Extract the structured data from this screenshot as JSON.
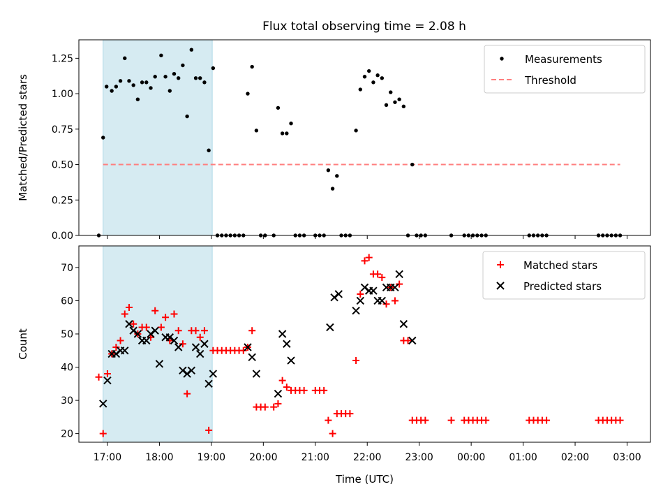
{
  "figure_title": "Flux total observing time = 2.08 h",
  "colors": {
    "measurement": "#000000",
    "threshold": "#ff7f7f",
    "matched": "#ff0000",
    "predicted": "#000000",
    "highlight": "#add8e6"
  },
  "chart_data": [
    {
      "type": "scatter",
      "title": "Flux total observing time = 2.08 h",
      "xlabel": "",
      "ylabel": "Matched/Predicted stars",
      "xlim": [
        "16:27",
        "03:27"
      ],
      "ylim": [
        0,
        1.38
      ],
      "yticks": [
        "0.00",
        "0.25",
        "0.50",
        "0.75",
        "1.00",
        "1.25"
      ],
      "xtick_labels": [
        "17:00",
        "18:00",
        "19:00",
        "20:00",
        "21:00",
        "22:00",
        "23:00",
        "00:00",
        "01:00",
        "02:00",
        "03:00"
      ],
      "highlight_span": [
        "16:55",
        "19:01"
      ],
      "legend": [
        "Measurements",
        "Threshold"
      ],
      "legend_position": "upper right",
      "threshold": {
        "name": "Threshold",
        "y": 0.5,
        "x": [
          "16:55",
          "02:52"
        ]
      },
      "series": [
        {
          "name": "Measurements",
          "marker": "dot",
          "points": [
            [
              "16:50",
              0.0
            ],
            [
              "16:55",
              0.69
            ],
            [
              "16:59",
              1.05
            ],
            [
              "17:05",
              1.02
            ],
            [
              "17:10",
              1.05
            ],
            [
              "17:15",
              1.09
            ],
            [
              "17:20",
              1.25
            ],
            [
              "17:25",
              1.09
            ],
            [
              "17:30",
              1.06
            ],
            [
              "17:35",
              0.96
            ],
            [
              "17:40",
              1.08
            ],
            [
              "17:45",
              1.08
            ],
            [
              "17:50",
              1.04
            ],
            [
              "17:55",
              1.12
            ],
            [
              "18:02",
              1.27
            ],
            [
              "18:07",
              1.12
            ],
            [
              "18:12",
              1.02
            ],
            [
              "18:17",
              1.14
            ],
            [
              "18:22",
              1.11
            ],
            [
              "18:27",
              1.2
            ],
            [
              "18:32",
              0.84
            ],
            [
              "18:37",
              1.31
            ],
            [
              "18:42",
              1.11
            ],
            [
              "18:47",
              1.11
            ],
            [
              "18:52",
              1.08
            ],
            [
              "18:57",
              0.6
            ],
            [
              "19:02",
              1.18
            ],
            [
              "19:07",
              0.0
            ],
            [
              "19:12",
              0.0
            ],
            [
              "19:17",
              0.0
            ],
            [
              "19:22",
              0.0
            ],
            [
              "19:27",
              0.0
            ],
            [
              "19:32",
              0.0
            ],
            [
              "19:37",
              0.0
            ],
            [
              "19:42",
              1.0
            ],
            [
              "19:47",
              1.19
            ],
            [
              "19:52",
              0.74
            ],
            [
              "19:57",
              0.0
            ],
            [
              "20:02",
              0.0
            ],
            [
              "20:12",
              0.0
            ],
            [
              "20:17",
              0.9
            ],
            [
              "20:22",
              0.72
            ],
            [
              "20:27",
              0.72
            ],
            [
              "20:32",
              0.79
            ],
            [
              "20:37",
              0.0
            ],
            [
              "20:42",
              0.0
            ],
            [
              "20:47",
              0.0
            ],
            [
              "21:00",
              0.0
            ],
            [
              "21:05",
              0.0
            ],
            [
              "21:10",
              0.0
            ],
            [
              "21:15",
              0.46
            ],
            [
              "21:20",
              0.33
            ],
            [
              "21:25",
              0.42
            ],
            [
              "21:30",
              0.0
            ],
            [
              "21:35",
              0.0
            ],
            [
              "21:40",
              0.0
            ],
            [
              "21:47",
              0.74
            ],
            [
              "21:52",
              1.03
            ],
            [
              "21:57",
              1.12
            ],
            [
              "22:02",
              1.16
            ],
            [
              "22:07",
              1.08
            ],
            [
              "22:12",
              1.13
            ],
            [
              "22:17",
              1.11
            ],
            [
              "22:22",
              0.92
            ],
            [
              "22:27",
              1.01
            ],
            [
              "22:32",
              0.94
            ],
            [
              "22:37",
              0.96
            ],
            [
              "22:42",
              0.91
            ],
            [
              "22:47",
              0.0
            ],
            [
              "22:52",
              0.5
            ],
            [
              "22:57",
              0.0
            ],
            [
              "23:02",
              0.0
            ],
            [
              "23:07",
              0.0
            ],
            [
              "23:37",
              0.0
            ],
            [
              "23:52",
              0.0
            ],
            [
              "23:57",
              0.0
            ],
            [
              "00:02",
              0.0
            ],
            [
              "00:07",
              0.0
            ],
            [
              "00:12",
              0.0
            ],
            [
              "00:17",
              0.0
            ],
            [
              "01:07",
              0.0
            ],
            [
              "01:12",
              0.0
            ],
            [
              "01:17",
              0.0
            ],
            [
              "01:22",
              0.0
            ],
            [
              "01:27",
              0.0
            ],
            [
              "02:27",
              0.0
            ],
            [
              "02:32",
              0.0
            ],
            [
              "02:37",
              0.0
            ],
            [
              "02:42",
              0.0
            ],
            [
              "02:47",
              0.0
            ],
            [
              "02:52",
              0.0
            ]
          ]
        }
      ]
    },
    {
      "type": "scatter",
      "title": "",
      "xlabel": "Time (UTC)",
      "ylabel": "Count",
      "xlim": [
        "16:27",
        "03:27"
      ],
      "ylim": [
        17.4,
        76.5
      ],
      "yticks": [
        "20",
        "30",
        "40",
        "50",
        "60",
        "70"
      ],
      "xtick_labels": [
        "17:00",
        "18:00",
        "19:00",
        "20:00",
        "21:00",
        "22:00",
        "23:00",
        "00:00",
        "01:00",
        "02:00",
        "03:00"
      ],
      "highlight_span": [
        "16:55",
        "19:01"
      ],
      "legend": [
        "Matched stars",
        "Predicted stars"
      ],
      "legend_position": "upper right",
      "series": [
        {
          "name": "Matched stars",
          "marker": "plus",
          "points": [
            [
              "16:50",
              37
            ],
            [
              "16:55",
              20
            ],
            [
              "17:00",
              38
            ],
            [
              "17:05",
              44
            ],
            [
              "17:10",
              46
            ],
            [
              "17:15",
              48
            ],
            [
              "17:20",
              56
            ],
            [
              "17:25",
              58
            ],
            [
              "17:30",
              53
            ],
            [
              "17:35",
              50
            ],
            [
              "17:40",
              52
            ],
            [
              "17:45",
              52
            ],
            [
              "17:50",
              49
            ],
            [
              "17:55",
              57
            ],
            [
              "18:02",
              52
            ],
            [
              "18:07",
              55
            ],
            [
              "18:12",
              48
            ],
            [
              "18:17",
              56
            ],
            [
              "18:22",
              51
            ],
            [
              "18:27",
              47
            ],
            [
              "18:32",
              32
            ],
            [
              "18:37",
              51
            ],
            [
              "18:42",
              51
            ],
            [
              "18:47",
              49
            ],
            [
              "18:52",
              51
            ],
            [
              "18:57",
              21
            ],
            [
              "19:02",
              45
            ],
            [
              "19:07",
              45
            ],
            [
              "19:12",
              45
            ],
            [
              "19:17",
              45
            ],
            [
              "19:22",
              45
            ],
            [
              "19:27",
              45
            ],
            [
              "19:32",
              45
            ],
            [
              "19:37",
              45
            ],
            [
              "19:42",
              46
            ],
            [
              "19:47",
              51
            ],
            [
              "19:52",
              28
            ],
            [
              "19:57",
              28
            ],
            [
              "20:02",
              28
            ],
            [
              "20:12",
              28
            ],
            [
              "20:17",
              29
            ],
            [
              "20:22",
              36
            ],
            [
              "20:27",
              34
            ],
            [
              "20:32",
              33
            ],
            [
              "20:37",
              33
            ],
            [
              "20:42",
              33
            ],
            [
              "20:47",
              33
            ],
            [
              "21:00",
              33
            ],
            [
              "21:05",
              33
            ],
            [
              "21:10",
              33
            ],
            [
              "21:15",
              24
            ],
            [
              "21:20",
              20
            ],
            [
              "21:25",
              26
            ],
            [
              "21:30",
              26
            ],
            [
              "21:35",
              26
            ],
            [
              "21:40",
              26
            ],
            [
              "21:47",
              42
            ],
            [
              "21:52",
              62
            ],
            [
              "21:57",
              72
            ],
            [
              "22:02",
              73
            ],
            [
              "22:07",
              68
            ],
            [
              "22:12",
              68
            ],
            [
              "22:17",
              67
            ],
            [
              "22:22",
              59
            ],
            [
              "22:27",
              64
            ],
            [
              "22:32",
              60
            ],
            [
              "22:37",
              65
            ],
            [
              "22:42",
              48
            ],
            [
              "22:47",
              48
            ],
            [
              "22:52",
              24
            ],
            [
              "22:57",
              24
            ],
            [
              "23:02",
              24
            ],
            [
              "23:07",
              24
            ],
            [
              "23:37",
              24
            ],
            [
              "23:52",
              24
            ],
            [
              "23:57",
              24
            ],
            [
              "00:02",
              24
            ],
            [
              "00:07",
              24
            ],
            [
              "00:12",
              24
            ],
            [
              "00:17",
              24
            ],
            [
              "01:07",
              24
            ],
            [
              "01:12",
              24
            ],
            [
              "01:17",
              24
            ],
            [
              "01:22",
              24
            ],
            [
              "01:27",
              24
            ],
            [
              "02:27",
              24
            ],
            [
              "02:32",
              24
            ],
            [
              "02:37",
              24
            ],
            [
              "02:42",
              24
            ],
            [
              "02:47",
              24
            ],
            [
              "02:52",
              24
            ]
          ]
        },
        {
          "name": "Predicted stars",
          "marker": "x",
          "points": [
            [
              "16:55",
              29
            ],
            [
              "17:00",
              36
            ],
            [
              "17:05",
              44
            ],
            [
              "17:10",
              44
            ],
            [
              "17:15",
              45
            ],
            [
              "17:20",
              45
            ],
            [
              "17:25",
              53
            ],
            [
              "17:30",
              51
            ],
            [
              "17:35",
              50
            ],
            [
              "17:40",
              48
            ],
            [
              "17:45",
              48
            ],
            [
              "17:50",
              50
            ],
            [
              "17:55",
              51
            ],
            [
              "18:00",
              41
            ],
            [
              "18:07",
              49
            ],
            [
              "18:12",
              49
            ],
            [
              "18:17",
              48
            ],
            [
              "18:22",
              46
            ],
            [
              "18:27",
              39
            ],
            [
              "18:32",
              38
            ],
            [
              "18:37",
              39
            ],
            [
              "18:42",
              46
            ],
            [
              "18:47",
              44
            ],
            [
              "18:52",
              47
            ],
            [
              "18:57",
              35
            ],
            [
              "19:02",
              38
            ],
            [
              "19:42",
              46
            ],
            [
              "19:47",
              43
            ],
            [
              "19:52",
              38
            ],
            [
              "20:17",
              32
            ],
            [
              "20:22",
              50
            ],
            [
              "20:27",
              47
            ],
            [
              "20:32",
              42
            ],
            [
              "21:17",
              52
            ],
            [
              "21:22",
              61
            ],
            [
              "21:27",
              62
            ],
            [
              "21:47",
              57
            ],
            [
              "21:52",
              60
            ],
            [
              "21:57",
              64
            ],
            [
              "22:02",
              63
            ],
            [
              "22:07",
              63
            ],
            [
              "22:12",
              60
            ],
            [
              "22:17",
              60
            ],
            [
              "22:22",
              64
            ],
            [
              "22:27",
              64
            ],
            [
              "22:32",
              64
            ],
            [
              "22:37",
              68
            ],
            [
              "22:42",
              53
            ],
            [
              "22:52",
              48
            ]
          ]
        }
      ]
    }
  ]
}
